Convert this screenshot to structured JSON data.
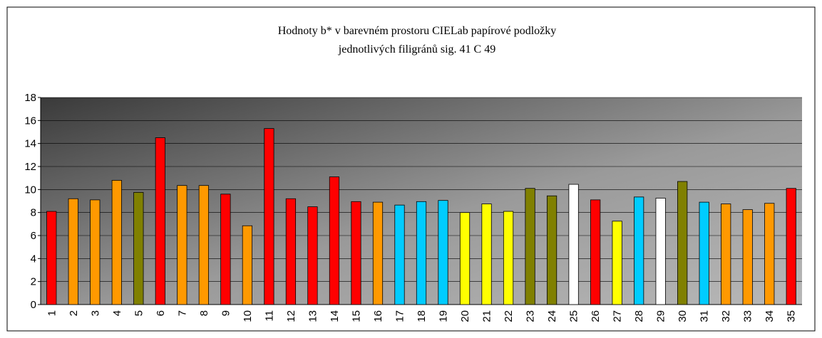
{
  "chart_data": {
    "type": "bar",
    "title_lines": [
      "Hodnoty b* v barevném prostoru CIELab papírové podložky",
      "jednotlivých filigránů sig. 41 C 49"
    ],
    "categories": [
      "1",
      "2",
      "3",
      "4",
      "5",
      "6",
      "7",
      "8",
      "9",
      "10",
      "11",
      "12",
      "13",
      "14",
      "15",
      "16",
      "17",
      "18",
      "19",
      "20",
      "21",
      "22",
      "23",
      "24",
      "25",
      "26",
      "27",
      "28",
      "29",
      "30",
      "31",
      "32",
      "33",
      "34",
      "35"
    ],
    "values": [
      8.1,
      9.2,
      9.1,
      10.8,
      9.75,
      14.5,
      10.35,
      10.35,
      9.6,
      6.85,
      15.3,
      9.2,
      8.5,
      11.1,
      8.95,
      8.9,
      8.65,
      8.95,
      9.05,
      8.0,
      8.75,
      8.1,
      10.1,
      9.45,
      10.45,
      9.1,
      7.25,
      9.35,
      9.25,
      10.7,
      8.9,
      8.75,
      8.25,
      8.8,
      10.1
    ],
    "colors": [
      "#ff0000",
      "#ff9900",
      "#ff9900",
      "#ff9900",
      "#808000",
      "#ff0000",
      "#ff9900",
      "#ff9900",
      "#ff0000",
      "#ff9900",
      "#ff0000",
      "#ff0000",
      "#ff0000",
      "#ff0000",
      "#ff0000",
      "#ff9900",
      "#00ccff",
      "#00ccff",
      "#00ccff",
      "#ffff00",
      "#ffff00",
      "#ffff00",
      "#808000",
      "#808000",
      "#ffffff",
      "#ff0000",
      "#ffff00",
      "#00ccff",
      "#ffffff",
      "#808000",
      "#00ccff",
      "#ff9900",
      "#ff9900",
      "#ff9900",
      "#ff0000"
    ],
    "ylim": [
      0,
      18
    ],
    "yticks": [
      0,
      2,
      4,
      6,
      8,
      10,
      12,
      14,
      16,
      18
    ],
    "grid": true
  }
}
